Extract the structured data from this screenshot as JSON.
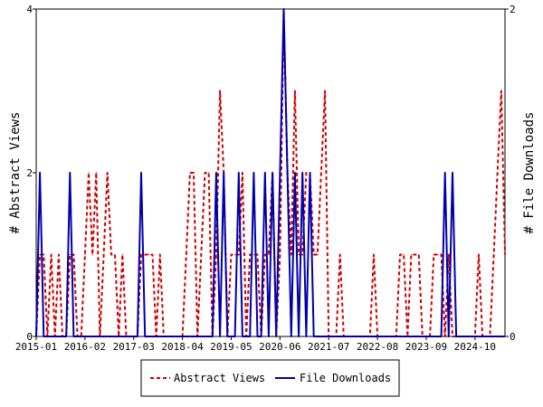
{
  "chart_data": {
    "type": "line",
    "x_labels": [
      "2015-01",
      "2016-02",
      "2017-03",
      "2018-04",
      "2019-05",
      "2020-06",
      "2021-07",
      "2022-08",
      "2023-09",
      "2024-10"
    ],
    "x_range": [
      "2015-01",
      "2025-06"
    ],
    "y_left": {
      "label": "# Abstract Views",
      "range": [
        0,
        4
      ],
      "ticks": [
        "0",
        "2",
        "4"
      ]
    },
    "y_right": {
      "label": "# File Downloads",
      "range": [
        0,
        2
      ],
      "ticks": [
        "0",
        "2"
      ]
    },
    "legend_position": "bottom-center",
    "series": [
      {
        "name": "Abstract Views",
        "axis": "left",
        "color": "#cc0000",
        "style": "dashed",
        "points": [
          [
            "2015-01",
            0
          ],
          [
            "2015-02",
            1
          ],
          [
            "2015-03",
            1
          ],
          [
            "2015-04",
            0
          ],
          [
            "2015-05",
            1
          ],
          [
            "2015-06",
            0
          ],
          [
            "2015-07",
            1
          ],
          [
            "2015-08",
            0
          ],
          [
            "2015-09",
            0
          ],
          [
            "2015-10",
            1
          ],
          [
            "2015-11",
            1
          ],
          [
            "2015-12",
            0
          ],
          [
            "2016-01",
            0
          ],
          [
            "2016-02",
            1
          ],
          [
            "2016-03",
            2
          ],
          [
            "2016-04",
            1
          ],
          [
            "2016-05",
            2
          ],
          [
            "2016-06",
            0
          ],
          [
            "2016-07",
            1
          ],
          [
            "2016-08",
            2
          ],
          [
            "2016-09",
            1
          ],
          [
            "2016-10",
            1
          ],
          [
            "2016-11",
            0
          ],
          [
            "2016-12",
            1
          ],
          [
            "2017-01",
            0
          ],
          [
            "2017-02",
            0
          ],
          [
            "2017-03",
            0
          ],
          [
            "2017-04",
            0
          ],
          [
            "2017-05",
            1
          ],
          [
            "2017-06",
            1
          ],
          [
            "2017-07",
            1
          ],
          [
            "2017-08",
            1
          ],
          [
            "2017-09",
            0
          ],
          [
            "2017-10",
            1
          ],
          [
            "2017-11",
            0
          ],
          [
            "2017-12",
            0
          ],
          [
            "2018-01",
            0
          ],
          [
            "2018-02",
            0
          ],
          [
            "2018-03",
            0
          ],
          [
            "2018-04",
            0
          ],
          [
            "2018-05",
            1
          ],
          [
            "2018-06",
            2
          ],
          [
            "2018-07",
            2
          ],
          [
            "2018-08",
            0
          ],
          [
            "2018-09",
            1
          ],
          [
            "2018-10",
            2
          ],
          [
            "2018-11",
            2
          ],
          [
            "2018-12",
            0
          ],
          [
            "2019-01",
            1
          ],
          [
            "2019-02",
            3
          ],
          [
            "2019-03",
            2
          ],
          [
            "2019-04",
            0
          ],
          [
            "2019-05",
            1
          ],
          [
            "2019-06",
            1
          ],
          [
            "2019-07",
            1
          ],
          [
            "2019-08",
            2
          ],
          [
            "2019-09",
            0
          ],
          [
            "2019-10",
            1
          ],
          [
            "2019-11",
            1
          ],
          [
            "2019-12",
            1
          ],
          [
            "2020-01",
            0
          ],
          [
            "2020-02",
            1
          ],
          [
            "2020-03",
            1
          ],
          [
            "2020-04",
            2
          ],
          [
            "2020-05",
            0
          ],
          [
            "2020-06",
            1
          ],
          [
            "2020-07",
            4
          ],
          [
            "2020-08",
            2
          ],
          [
            "2020-09",
            1
          ],
          [
            "2020-10",
            3
          ],
          [
            "2020-11",
            1
          ],
          [
            "2020-12",
            1
          ],
          [
            "2021-01",
            2
          ],
          [
            "2021-02",
            2
          ],
          [
            "2021-03",
            1
          ],
          [
            "2021-04",
            1
          ],
          [
            "2021-05",
            2
          ],
          [
            "2021-06",
            3
          ],
          [
            "2021-07",
            0
          ],
          [
            "2021-08",
            0
          ],
          [
            "2021-09",
            0
          ],
          [
            "2021-10",
            1
          ],
          [
            "2021-11",
            0
          ],
          [
            "2021-12",
            0
          ],
          [
            "2022-01",
            0
          ],
          [
            "2022-02",
            0
          ],
          [
            "2022-03",
            0
          ],
          [
            "2022-04",
            0
          ],
          [
            "2022-05",
            0
          ],
          [
            "2022-06",
            0
          ],
          [
            "2022-07",
            1
          ],
          [
            "2022-08",
            0
          ],
          [
            "2022-09",
            0
          ],
          [
            "2022-10",
            0
          ],
          [
            "2022-11",
            0
          ],
          [
            "2022-12",
            0
          ],
          [
            "2023-01",
            0
          ],
          [
            "2023-02",
            1
          ],
          [
            "2023-03",
            1
          ],
          [
            "2023-04",
            0
          ],
          [
            "2023-05",
            1
          ],
          [
            "2023-06",
            1
          ],
          [
            "2023-07",
            1
          ],
          [
            "2023-08",
            0
          ],
          [
            "2023-09",
            0
          ],
          [
            "2023-10",
            0
          ],
          [
            "2023-11",
            1
          ],
          [
            "2023-12",
            1
          ],
          [
            "2024-01",
            1
          ],
          [
            "2024-02",
            0
          ],
          [
            "2024-03",
            1
          ],
          [
            "2024-04",
            0
          ],
          [
            "2024-05",
            0
          ],
          [
            "2024-06",
            0
          ],
          [
            "2024-07",
            0
          ],
          [
            "2024-08",
            0
          ],
          [
            "2024-09",
            0
          ],
          [
            "2024-10",
            0
          ],
          [
            "2024-11",
            1
          ],
          [
            "2024-12",
            0
          ],
          [
            "2025-01",
            0
          ],
          [
            "2025-02",
            0
          ],
          [
            "2025-03",
            1
          ],
          [
            "2025-04",
            2
          ],
          [
            "2025-05",
            3
          ],
          [
            "2025-06",
            1
          ]
        ]
      },
      {
        "name": "File Downloads",
        "axis": "right",
        "color": "#0000aa",
        "style": "solid",
        "points": [
          [
            "2015-01",
            0
          ],
          [
            "2015-02",
            1
          ],
          [
            "2015-03",
            0
          ],
          [
            "2015-04",
            0
          ],
          [
            "2015-05",
            0
          ],
          [
            "2015-06",
            0
          ],
          [
            "2015-07",
            0
          ],
          [
            "2015-08",
            0
          ],
          [
            "2015-09",
            0
          ],
          [
            "2015-10",
            1
          ],
          [
            "2015-11",
            0
          ],
          [
            "2015-12",
            0
          ],
          [
            "2016-01",
            0
          ],
          [
            "2016-02",
            0
          ],
          [
            "2016-03",
            0
          ],
          [
            "2016-04",
            0
          ],
          [
            "2016-05",
            0
          ],
          [
            "2016-06",
            0
          ],
          [
            "2016-07",
            0
          ],
          [
            "2016-08",
            0
          ],
          [
            "2016-09",
            0
          ],
          [
            "2016-10",
            0
          ],
          [
            "2016-11",
            0
          ],
          [
            "2016-12",
            0
          ],
          [
            "2017-01",
            0
          ],
          [
            "2017-02",
            0
          ],
          [
            "2017-03",
            0
          ],
          [
            "2017-04",
            0
          ],
          [
            "2017-05",
            1
          ],
          [
            "2017-06",
            0
          ],
          [
            "2017-07",
            0
          ],
          [
            "2017-08",
            0
          ],
          [
            "2017-09",
            0
          ],
          [
            "2017-10",
            0
          ],
          [
            "2017-11",
            0
          ],
          [
            "2017-12",
            0
          ],
          [
            "2018-01",
            0
          ],
          [
            "2018-02",
            0
          ],
          [
            "2018-03",
            0
          ],
          [
            "2018-04",
            0
          ],
          [
            "2018-05",
            0
          ],
          [
            "2018-06",
            0
          ],
          [
            "2018-07",
            0
          ],
          [
            "2018-08",
            0
          ],
          [
            "2018-09",
            0
          ],
          [
            "2018-10",
            0
          ],
          [
            "2018-11",
            0
          ],
          [
            "2018-12",
            0
          ],
          [
            "2019-01",
            1
          ],
          [
            "2019-02",
            0
          ],
          [
            "2019-03",
            1
          ],
          [
            "2019-04",
            0
          ],
          [
            "2019-05",
            0
          ],
          [
            "2019-06",
            0
          ],
          [
            "2019-07",
            1
          ],
          [
            "2019-08",
            0
          ],
          [
            "2019-09",
            0
          ],
          [
            "2019-10",
            0
          ],
          [
            "2019-11",
            1
          ],
          [
            "2019-12",
            0
          ],
          [
            "2020-01",
            0
          ],
          [
            "2020-02",
            1
          ],
          [
            "2020-03",
            0
          ],
          [
            "2020-04",
            1
          ],
          [
            "2020-05",
            0
          ],
          [
            "2020-06",
            1
          ],
          [
            "2020-07",
            2
          ],
          [
            "2020-08",
            1
          ],
          [
            "2020-09",
            0
          ],
          [
            "2020-10",
            1
          ],
          [
            "2020-11",
            0
          ],
          [
            "2020-12",
            1
          ],
          [
            "2021-01",
            0
          ],
          [
            "2021-02",
            1
          ],
          [
            "2021-03",
            0
          ],
          [
            "2021-04",
            0
          ],
          [
            "2021-05",
            0
          ],
          [
            "2021-06",
            0
          ],
          [
            "2021-07",
            0
          ],
          [
            "2021-08",
            0
          ],
          [
            "2021-09",
            0
          ],
          [
            "2021-10",
            0
          ],
          [
            "2021-11",
            0
          ],
          [
            "2021-12",
            0
          ],
          [
            "2022-01",
            0
          ],
          [
            "2022-02",
            0
          ],
          [
            "2022-03",
            0
          ],
          [
            "2022-04",
            0
          ],
          [
            "2022-05",
            0
          ],
          [
            "2022-06",
            0
          ],
          [
            "2022-07",
            0
          ],
          [
            "2022-08",
            0
          ],
          [
            "2022-09",
            0
          ],
          [
            "2022-10",
            0
          ],
          [
            "2022-11",
            0
          ],
          [
            "2022-12",
            0
          ],
          [
            "2023-01",
            0
          ],
          [
            "2023-02",
            0
          ],
          [
            "2023-03",
            0
          ],
          [
            "2023-04",
            0
          ],
          [
            "2023-05",
            0
          ],
          [
            "2023-06",
            0
          ],
          [
            "2023-07",
            0
          ],
          [
            "2023-08",
            0
          ],
          [
            "2023-09",
            0
          ],
          [
            "2023-10",
            0
          ],
          [
            "2023-11",
            0
          ],
          [
            "2023-12",
            0
          ],
          [
            "2024-01",
            0
          ],
          [
            "2024-02",
            1
          ],
          [
            "2024-03",
            0
          ],
          [
            "2024-04",
            1
          ],
          [
            "2024-05",
            0
          ],
          [
            "2024-06",
            0
          ],
          [
            "2024-07",
            0
          ],
          [
            "2024-08",
            0
          ],
          [
            "2024-09",
            0
          ],
          [
            "2024-10",
            0
          ],
          [
            "2024-11",
            0
          ],
          [
            "2024-12",
            0
          ],
          [
            "2025-01",
            0
          ],
          [
            "2025-02",
            0
          ],
          [
            "2025-03",
            0
          ],
          [
            "2025-04",
            0
          ],
          [
            "2025-05",
            0
          ],
          [
            "2025-06",
            0
          ]
        ]
      }
    ]
  }
}
